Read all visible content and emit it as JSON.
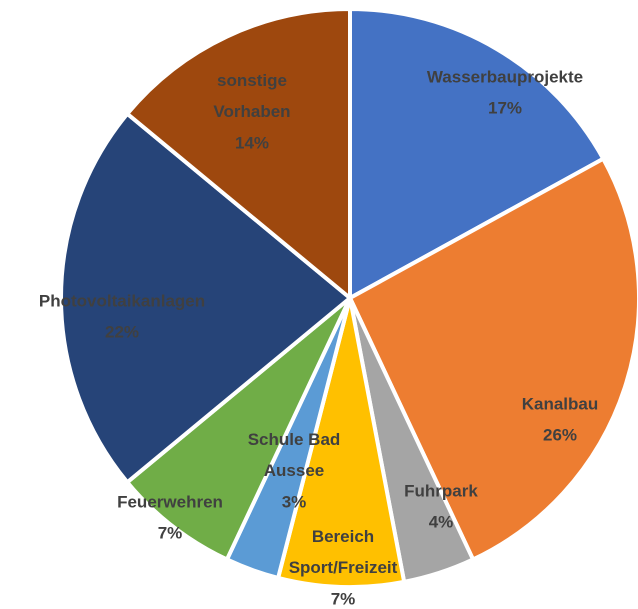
{
  "chart_data": {
    "type": "pie",
    "categories": [
      "Wasserbauprojekte",
      "Kanalbau",
      "Fuhrpark",
      "Bereich Sport/Freizeit",
      "Schule Bad Aussee",
      "Feuerwehren",
      "Photovoltaikanlagen",
      "sonstige Vorhaben"
    ],
    "values": [
      17,
      26,
      4,
      7,
      3,
      7,
      22,
      14
    ],
    "value_labels": [
      "17%",
      "26%",
      "4%",
      "7%",
      "3%",
      "7%",
      "22%",
      "14%"
    ],
    "colors": [
      "#4472c4",
      "#ed7d31",
      "#a5a5a5",
      "#ffc000",
      "#5b9bd5",
      "#70ad47",
      "#264478",
      "#9e480e"
    ]
  }
}
